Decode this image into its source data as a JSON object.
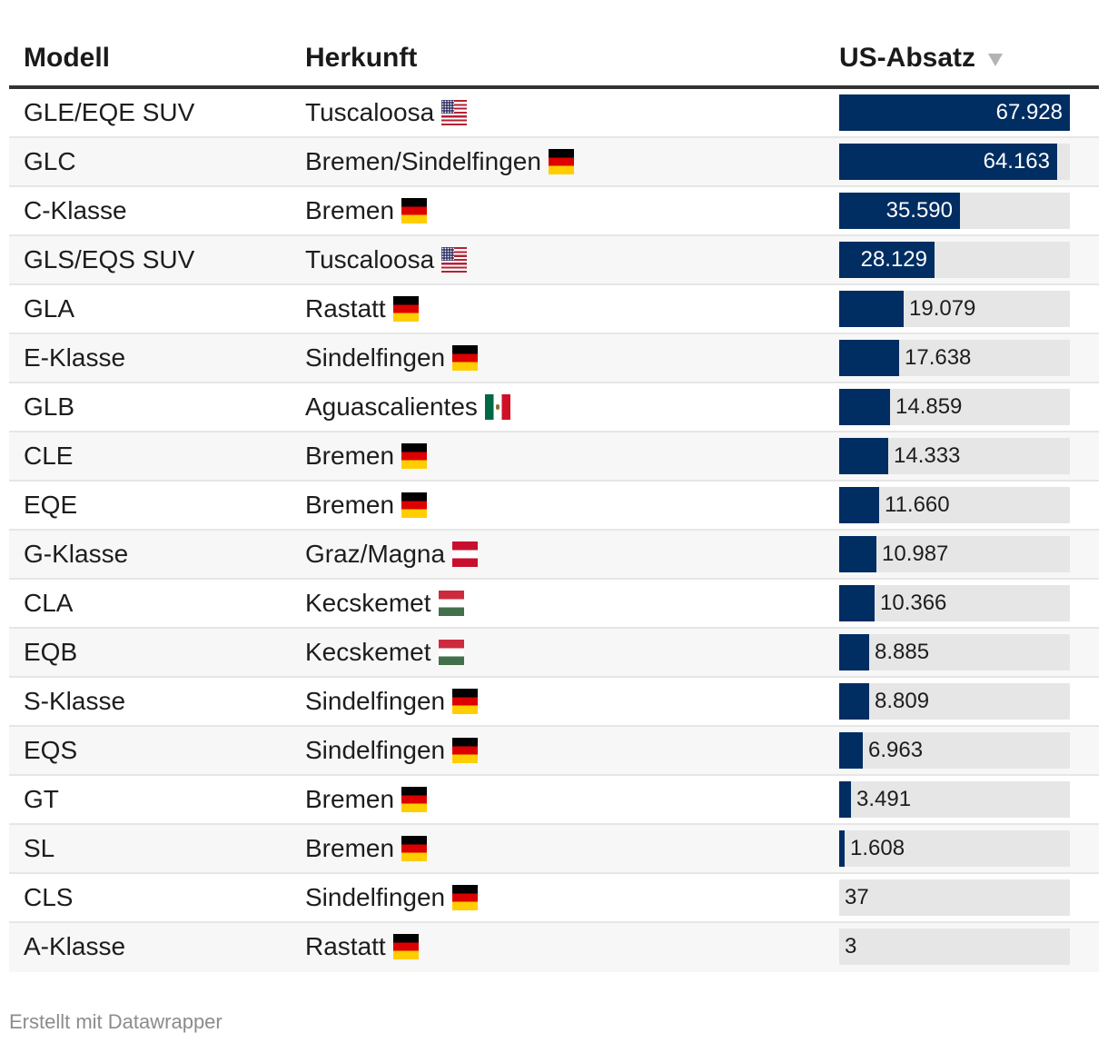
{
  "header": {
    "model_label": "Modell",
    "origin_label": "Herkunft",
    "sales_label": "US-Absatz"
  },
  "chart_data": {
    "type": "table",
    "columns": [
      "Modell",
      "Herkunft",
      "US-Absatz"
    ],
    "sort": {
      "column": "US-Absatz",
      "direction": "descending"
    },
    "bar_color": "#002d62",
    "track_color": "#e6e6e6",
    "max_value": 67928,
    "rows": [
      {
        "model": "GLE/EQE SUV",
        "origin": "Tuscaloosa",
        "flag": "us-flag",
        "value": 67928,
        "label": "67.928"
      },
      {
        "model": "GLC",
        "origin": "Bremen/Sindelfingen",
        "flag": "germany-flag",
        "value": 64163,
        "label": "64.163"
      },
      {
        "model": "C-Klasse",
        "origin": "Bremen",
        "flag": "germany-flag",
        "value": 35590,
        "label": "35.590"
      },
      {
        "model": "GLS/EQS SUV",
        "origin": "Tuscaloosa",
        "flag": "us-flag",
        "value": 28129,
        "label": "28.129"
      },
      {
        "model": "GLA",
        "origin": "Rastatt",
        "flag": "germany-flag",
        "value": 19079,
        "label": "19.079"
      },
      {
        "model": "E-Klasse",
        "origin": "Sindelfingen",
        "flag": "germany-flag",
        "value": 17638,
        "label": "17.638"
      },
      {
        "model": "GLB",
        "origin": "Aguascalientes",
        "flag": "mexico-flag",
        "value": 14859,
        "label": "14.859"
      },
      {
        "model": "CLE",
        "origin": "Bremen",
        "flag": "germany-flag",
        "value": 14333,
        "label": "14.333"
      },
      {
        "model": "EQE",
        "origin": "Bremen",
        "flag": "germany-flag",
        "value": 11660,
        "label": "11.660"
      },
      {
        "model": "G-Klasse",
        "origin": "Graz/Magna",
        "flag": "austria-flag",
        "value": 10987,
        "label": "10.987"
      },
      {
        "model": "CLA",
        "origin": "Kecskemet",
        "flag": "hungary-flag",
        "value": 10366,
        "label": "10.366"
      },
      {
        "model": "EQB",
        "origin": "Kecskemet",
        "flag": "hungary-flag",
        "value": 8885,
        "label": "8.885"
      },
      {
        "model": "S-Klasse",
        "origin": "Sindelfingen",
        "flag": "germany-flag",
        "value": 8809,
        "label": "8.809"
      },
      {
        "model": "EQS",
        "origin": "Sindelfingen",
        "flag": "germany-flag",
        "value": 6963,
        "label": "6.963"
      },
      {
        "model": "GT",
        "origin": "Bremen",
        "flag": "germany-flag",
        "value": 3491,
        "label": "3.491"
      },
      {
        "model": "SL",
        "origin": "Bremen",
        "flag": "germany-flag",
        "value": 1608,
        "label": "1.608"
      },
      {
        "model": "CLS",
        "origin": "Sindelfingen",
        "flag": "germany-flag",
        "value": 37,
        "label": "37"
      },
      {
        "model": "A-Klasse",
        "origin": "Rastatt",
        "flag": "germany-flag",
        "value": 3,
        "label": "3"
      }
    ]
  },
  "footer": {
    "credit": "Erstellt mit Datawrapper"
  }
}
